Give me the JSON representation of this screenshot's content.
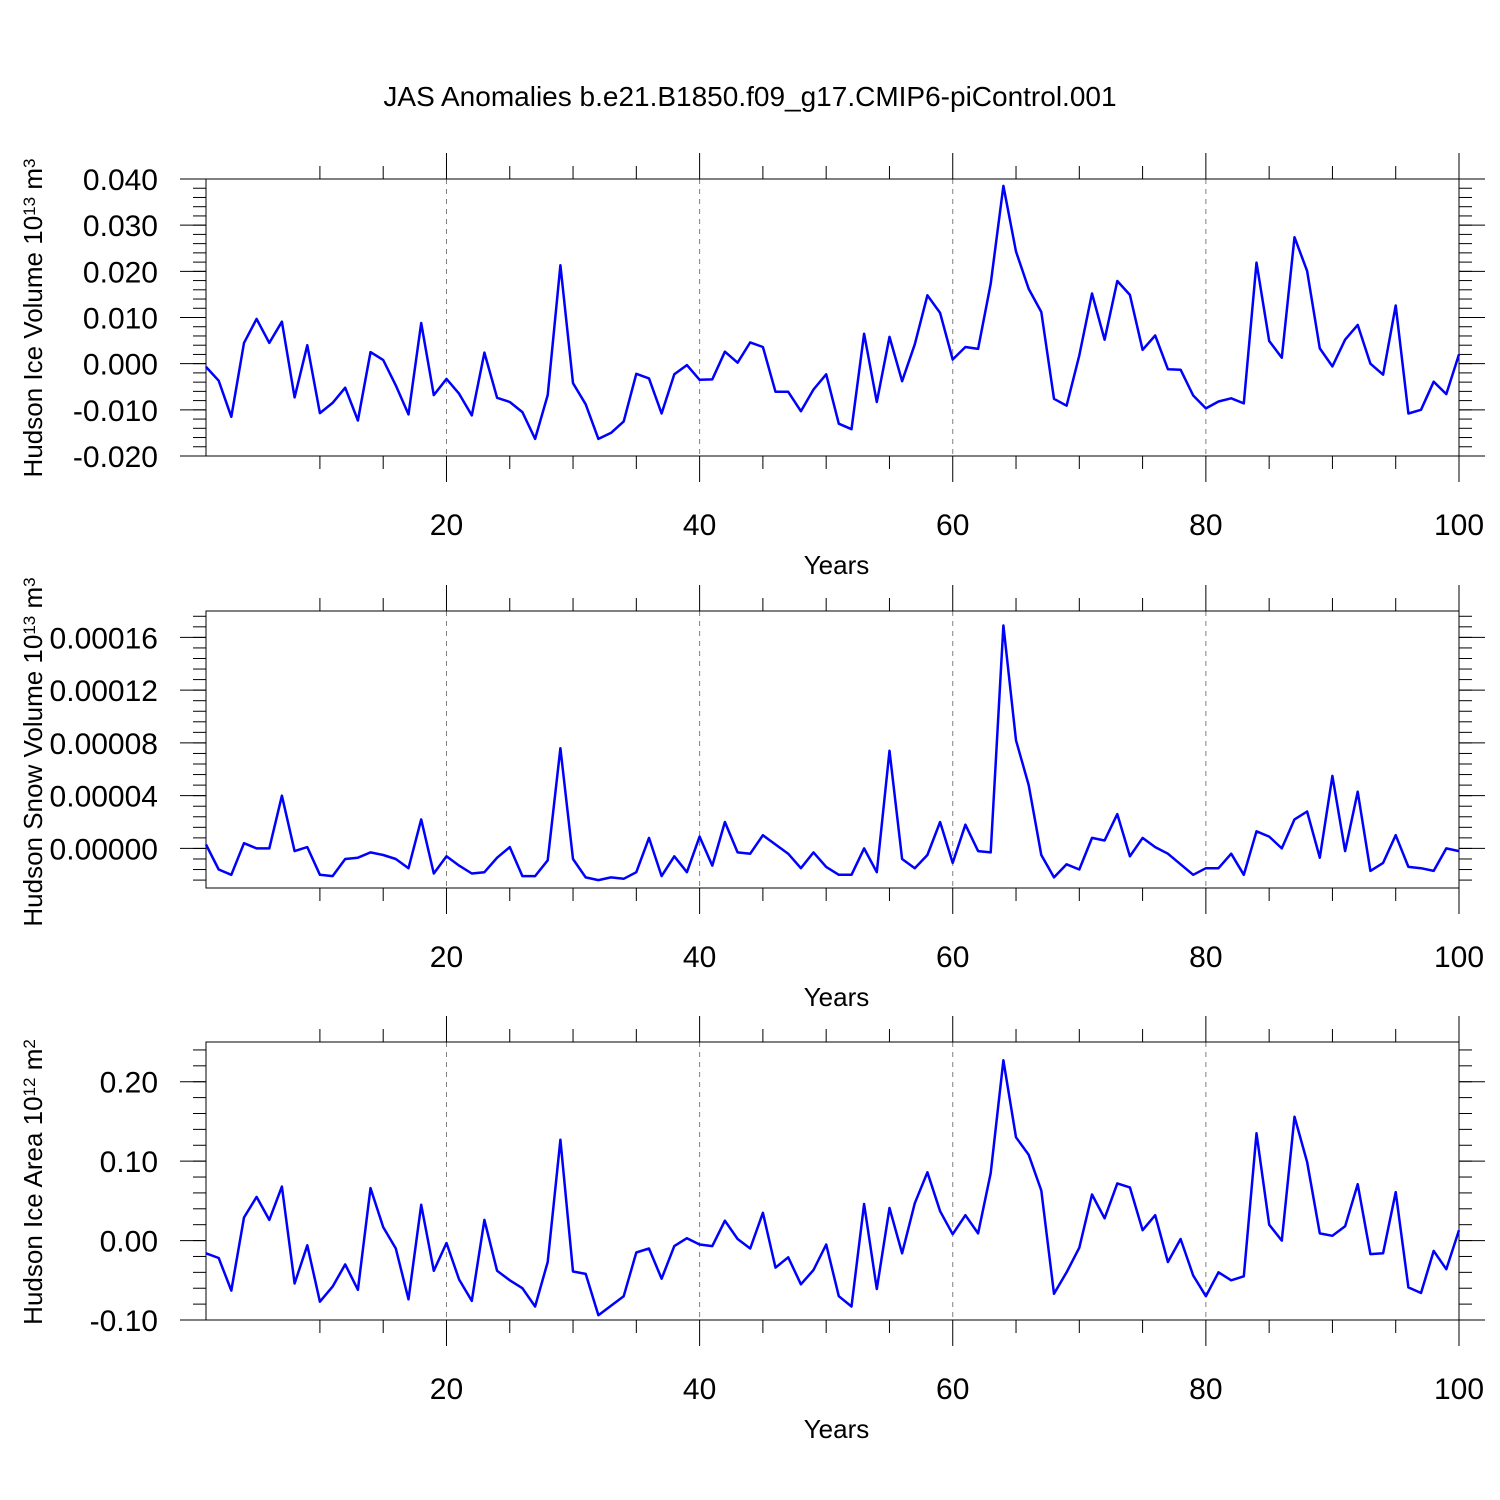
{
  "title": "JAS Anomalies b.e21.B1850.f09_g17.CMIP6-piControl.001",
  "line_color": "#0000ff",
  "grid_color": "#808080",
  "chart_data": [
    {
      "type": "line",
      "ylabel": "Hudson Ice Volume",
      "ylabel_unit_base": "10",
      "ylabel_unit_exp": "13",
      "ylabel_unit_sym": "m",
      "ylabel_unit_sym_exp": "3",
      "xlabel": "Years",
      "xlim": [
        1,
        100
      ],
      "ylim": [
        -0.02,
        0.04
      ],
      "xticks": [
        20,
        40,
        60,
        80,
        100
      ],
      "xtick_labels": [
        "20",
        "40",
        "60",
        "80",
        "100"
      ],
      "yticks": [
        -0.02,
        -0.01,
        0.0,
        0.01,
        0.02,
        0.03,
        0.04
      ],
      "ytick_labels": [
        "-0.020",
        "-0.010",
        "0.000",
        "0.010",
        "0.020",
        "0.030",
        "0.040"
      ],
      "grid_x": [
        20,
        40,
        60,
        80
      ],
      "x_start": 1,
      "values": [
        -0.0007,
        -0.0037,
        -0.0115,
        0.0045,
        0.0097,
        0.0045,
        0.0091,
        -0.0073,
        0.004,
        -0.0107,
        -0.0085,
        -0.0052,
        -0.0123,
        0.0025,
        0.0008,
        -0.0047,
        -0.011,
        0.0088,
        -0.0068,
        -0.0033,
        -0.0065,
        -0.0112,
        0.0024,
        -0.0074,
        -0.0083,
        -0.0105,
        -0.0163,
        -0.0068,
        0.0213,
        -0.0042,
        -0.0088,
        -0.0163,
        -0.015,
        -0.0125,
        -0.0022,
        -0.0032,
        -0.0108,
        -0.0023,
        -0.0003,
        -0.0035,
        -0.0034,
        0.0026,
        0.0002,
        0.0046,
        0.0036,
        -0.0061,
        -0.0061,
        -0.0103,
        -0.0056,
        -0.0023,
        -0.013,
        -0.0142,
        0.0065,
        -0.0083,
        0.0058,
        -0.0038,
        0.0042,
        0.0148,
        0.011,
        0.0009,
        0.0036,
        0.0032,
        0.0173,
        0.0385,
        0.0243,
        0.0162,
        0.0112,
        -0.0076,
        -0.0091,
        0.0018,
        0.0152,
        0.0052,
        0.0179,
        0.0149,
        0.003,
        0.0061,
        -0.0012,
        -0.0013,
        -0.0069,
        -0.0097,
        -0.0082,
        -0.0075,
        -0.0086,
        0.0219,
        0.0049,
        0.0013,
        0.0274,
        0.0201,
        0.0033,
        -0.0006,
        0.0052,
        0.0084,
        0.0,
        -0.0024,
        0.0126,
        -0.0108,
        -0.01,
        -0.0039,
        -0.0066,
        0.002
      ]
    },
    {
      "type": "line",
      "ylabel": "Hudson Snow Volume",
      "ylabel_unit_base": "10",
      "ylabel_unit_exp": "13",
      "ylabel_unit_sym": "m",
      "ylabel_unit_sym_exp": "3",
      "xlabel": "Years",
      "xlim": [
        1,
        100
      ],
      "ylim": [
        -3e-05,
        0.00018
      ],
      "xticks": [
        20,
        40,
        60,
        80,
        100
      ],
      "xtick_labels": [
        "20",
        "40",
        "60",
        "80",
        "100"
      ],
      "yticks": [
        0.0,
        4e-05,
        8e-05,
        0.00012,
        0.00016
      ],
      "ytick_labels": [
        "0.00000",
        "0.00004",
        "0.00008",
        "0.00012",
        "0.00016"
      ],
      "grid_x": [
        20,
        40,
        60,
        80
      ],
      "x_start": 1,
      "values": [
        3e-06,
        -1.6e-05,
        -2e-05,
        4e-06,
        0.0,
        0.0,
        4e-05,
        -2e-06,
        1e-06,
        -2e-05,
        -2.1e-05,
        -8e-06,
        -7e-06,
        -3e-06,
        -5e-06,
        -8e-06,
        -1.5e-05,
        2.2e-05,
        -1.9e-05,
        -6e-06,
        -1.3e-05,
        -1.9e-05,
        -1.8e-05,
        -7e-06,
        1e-06,
        -2.1e-05,
        -2.1e-05,
        -9e-06,
        7.6e-05,
        -8e-06,
        -2.2e-05,
        -2.4e-05,
        -2.2e-05,
        -2.3e-05,
        -1.8e-05,
        8e-06,
        -2.1e-05,
        -6e-06,
        -1.8e-05,
        9e-06,
        -1.3e-05,
        2e-05,
        -3e-06,
        -4e-06,
        1e-05,
        3e-06,
        -4e-06,
        -1.5e-05,
        -3e-06,
        -1.4e-05,
        -2e-05,
        -2e-05,
        0.0,
        -1.8e-05,
        7.4e-05,
        -8e-06,
        -1.5e-05,
        -5e-06,
        2e-05,
        -1.1e-05,
        1.8e-05,
        -2e-06,
        -3e-06,
        0.000169,
        8.2e-05,
        4.8e-05,
        -5e-06,
        -2.2e-05,
        -1.2e-05,
        -1.6e-05,
        8e-06,
        6e-06,
        2.6e-05,
        -6e-06,
        8e-06,
        1e-06,
        -4e-06,
        -1.2e-05,
        -2e-05,
        -1.5e-05,
        -1.5e-05,
        -4e-06,
        -2e-05,
        1.3e-05,
        9e-06,
        0.0,
        2.2e-05,
        2.8e-05,
        -7e-06,
        5.5e-05,
        -2e-06,
        4.3e-05,
        -1.7e-05,
        -1.1e-05,
        1e-05,
        -1.4e-05,
        -1.5e-05,
        -1.7e-05,
        0.0,
        -2e-06
      ]
    },
    {
      "type": "line",
      "ylabel": "Hudson Ice Area",
      "ylabel_unit_base": "10",
      "ylabel_unit_exp": "12",
      "ylabel_unit_sym": "m",
      "ylabel_unit_sym_exp": "2",
      "xlabel": "Years",
      "xlim": [
        1,
        100
      ],
      "ylim": [
        -0.1,
        0.25
      ],
      "xticks": [
        20,
        40,
        60,
        80,
        100
      ],
      "xtick_labels": [
        "20",
        "40",
        "60",
        "80",
        "100"
      ],
      "yticks": [
        -0.1,
        0.0,
        0.1,
        0.2
      ],
      "ytick_labels": [
        "-0.10",
        "0.00",
        "0.10",
        "0.20"
      ],
      "grid_x": [
        20,
        40,
        60,
        80
      ],
      "x_start": 1,
      "values": [
        -0.016,
        -0.022,
        -0.063,
        0.029,
        0.055,
        0.026,
        0.068,
        -0.054,
        -0.006,
        -0.077,
        -0.058,
        -0.03,
        -0.062,
        0.066,
        0.017,
        -0.01,
        -0.074,
        0.045,
        -0.038,
        -0.003,
        -0.049,
        -0.076,
        0.026,
        -0.038,
        -0.05,
        -0.06,
        -0.083,
        -0.027,
        0.127,
        -0.039,
        -0.042,
        -0.094,
        -0.082,
        -0.07,
        -0.015,
        -0.01,
        -0.048,
        -0.007,
        0.003,
        -0.005,
        -0.007,
        0.025,
        0.002,
        -0.01,
        0.035,
        -0.034,
        -0.021,
        -0.055,
        -0.037,
        -0.005,
        -0.07,
        -0.083,
        0.046,
        -0.061,
        0.041,
        -0.016,
        0.047,
        0.086,
        0.037,
        0.008,
        0.032,
        0.009,
        0.085,
        0.227,
        0.13,
        0.108,
        0.063,
        -0.067,
        -0.04,
        -0.009,
        0.058,
        0.028,
        0.072,
        0.067,
        0.013,
        0.032,
        -0.027,
        0.002,
        -0.044,
        -0.07,
        -0.04,
        -0.05,
        -0.045,
        0.135,
        0.02,
        0.0,
        0.156,
        0.099,
        0.009,
        0.006,
        0.018,
        0.071,
        -0.017,
        -0.016,
        0.061,
        -0.059,
        -0.066,
        -0.013,
        -0.036,
        0.013
      ]
    }
  ]
}
